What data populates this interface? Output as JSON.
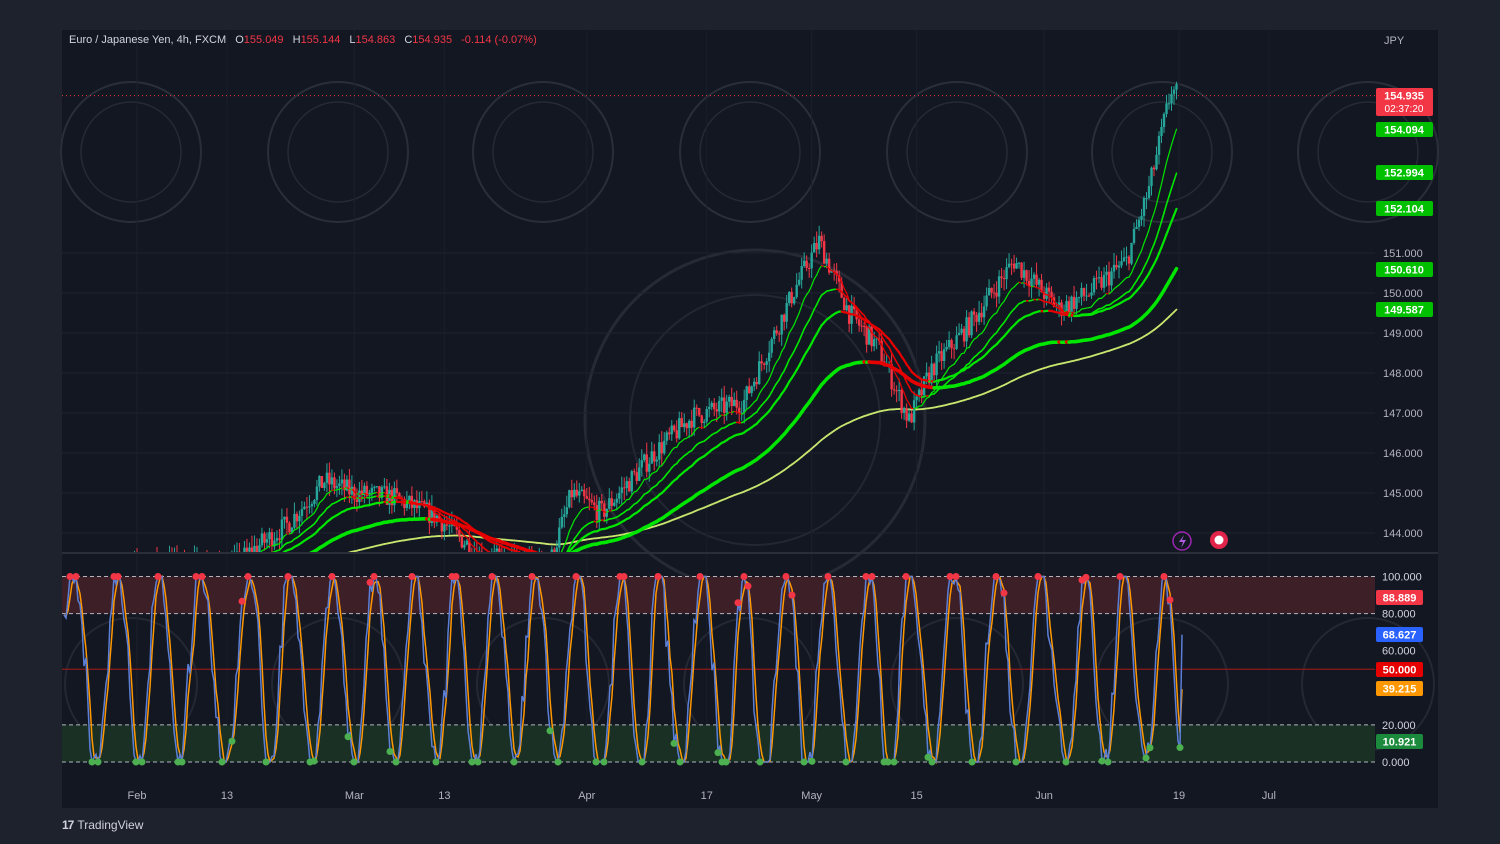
{
  "header": {
    "symbol": "Euro / Japanese Yen, 4h, FXCM",
    "o_label": "O",
    "o_value": "155.049",
    "h_label": "H",
    "h_value": "155.144",
    "l_label": "L",
    "l_value": "154.863",
    "c_label": "C",
    "c_value": "154.935",
    "change": "-0.114 (-0.07%)"
  },
  "footer": {
    "brand": "TradingView",
    "logo": "17"
  },
  "colors": {
    "background": "#1e222d",
    "pane": "#131722",
    "up": "#26a69a",
    "down": "#f23645",
    "ma_green": "#00e600",
    "ma_red": "#e60000",
    "ma_long": "#c8e66e",
    "stoch_k": "#5b7fd6",
    "stoch_d": "#ff9800",
    "overbought_zone": "#3d1f28",
    "oversold_zone": "#1a3024"
  },
  "chart_data": [
    {
      "type": "candlestick",
      "currency_label": "JPY",
      "yaxis_ticks": [
        "151.000",
        "150.000",
        "149.000",
        "148.000",
        "147.000",
        "146.000",
        "145.000",
        "144.000"
      ],
      "ylim": [
        143.5,
        156.2
      ],
      "x_ticks": [
        "Feb",
        "13",
        "Mar",
        "13",
        "Apr",
        "17",
        "May",
        "15",
        "Jun",
        "19",
        "Jul"
      ],
      "price_labels": [
        {
          "value": "154.935",
          "sub": "02:37:20",
          "color": "#f23645"
        },
        {
          "value": "154.094",
          "color": "#00c000"
        },
        {
          "value": "152.994",
          "color": "#00c000"
        },
        {
          "value": "152.104",
          "color": "#00c000"
        },
        {
          "value": "150.610",
          "color": "#00c000"
        },
        {
          "value": "149.587",
          "color": "#00c000"
        }
      ],
      "close_path": [
        [
          "Jan 29",
          143.0
        ],
        [
          "Feb 5",
          143.3
        ],
        [
          "Feb 13",
          143.1
        ],
        [
          "Feb 21",
          144.2
        ],
        [
          "Feb 26",
          145.3
        ],
        [
          "Mar 1",
          145.0
        ],
        [
          "Mar 6",
          144.9
        ],
        [
          "Mar 12",
          144.4
        ],
        [
          "Mar 18",
          143.4
        ],
        [
          "Mar 27",
          143.2
        ],
        [
          "Mar 30",
          145.0
        ],
        [
          "Apr 3",
          144.5
        ],
        [
          "Apr 10",
          146.0
        ],
        [
          "Apr 15",
          146.9
        ],
        [
          "Apr 22",
          147.3
        ],
        [
          "Apr 29",
          150.2
        ],
        [
          "May 2",
          151.3
        ],
        [
          "May 6",
          149.5
        ],
        [
          "May 10",
          148.6
        ],
        [
          "May 14",
          146.8
        ],
        [
          "May 17",
          148.1
        ],
        [
          "May 22",
          149.2
        ],
        [
          "May 28",
          150.8
        ],
        [
          "Jun 3",
          149.6
        ],
        [
          "Jun 7",
          150.0
        ],
        [
          "Jun 12",
          150.8
        ],
        [
          "Jun 15",
          152.6
        ],
        [
          "Jun 18",
          155.1
        ],
        [
          "Jun 19",
          154.9
        ]
      ],
      "moving_averages": [
        {
          "name": "MA1",
          "last": 154.094
        },
        {
          "name": "MA2",
          "last": 152.994
        },
        {
          "name": "MA3",
          "last": 152.104
        },
        {
          "name": "MA4",
          "last": 150.61
        },
        {
          "name": "MA5",
          "last": 149.587
        }
      ]
    },
    {
      "type": "line",
      "name": "stochastic",
      "yaxis_ticks": [
        "100.000",
        "80.000",
        "60.000",
        "40.000",
        "20.000",
        "0.000"
      ],
      "ylim": [
        0,
        100
      ],
      "levels": {
        "overbought": 80,
        "oversold": 20,
        "mid": 50
      },
      "price_labels": [
        {
          "value": "88.889",
          "color": "#f23645"
        },
        {
          "value": "68.627",
          "color": "#2962ff"
        },
        {
          "value": "50.000",
          "color": "#e60000"
        },
        {
          "value": "39.215",
          "color": "#ff9800"
        },
        {
          "value": "10.921",
          "color": "#1b8a3c"
        }
      ]
    }
  ]
}
